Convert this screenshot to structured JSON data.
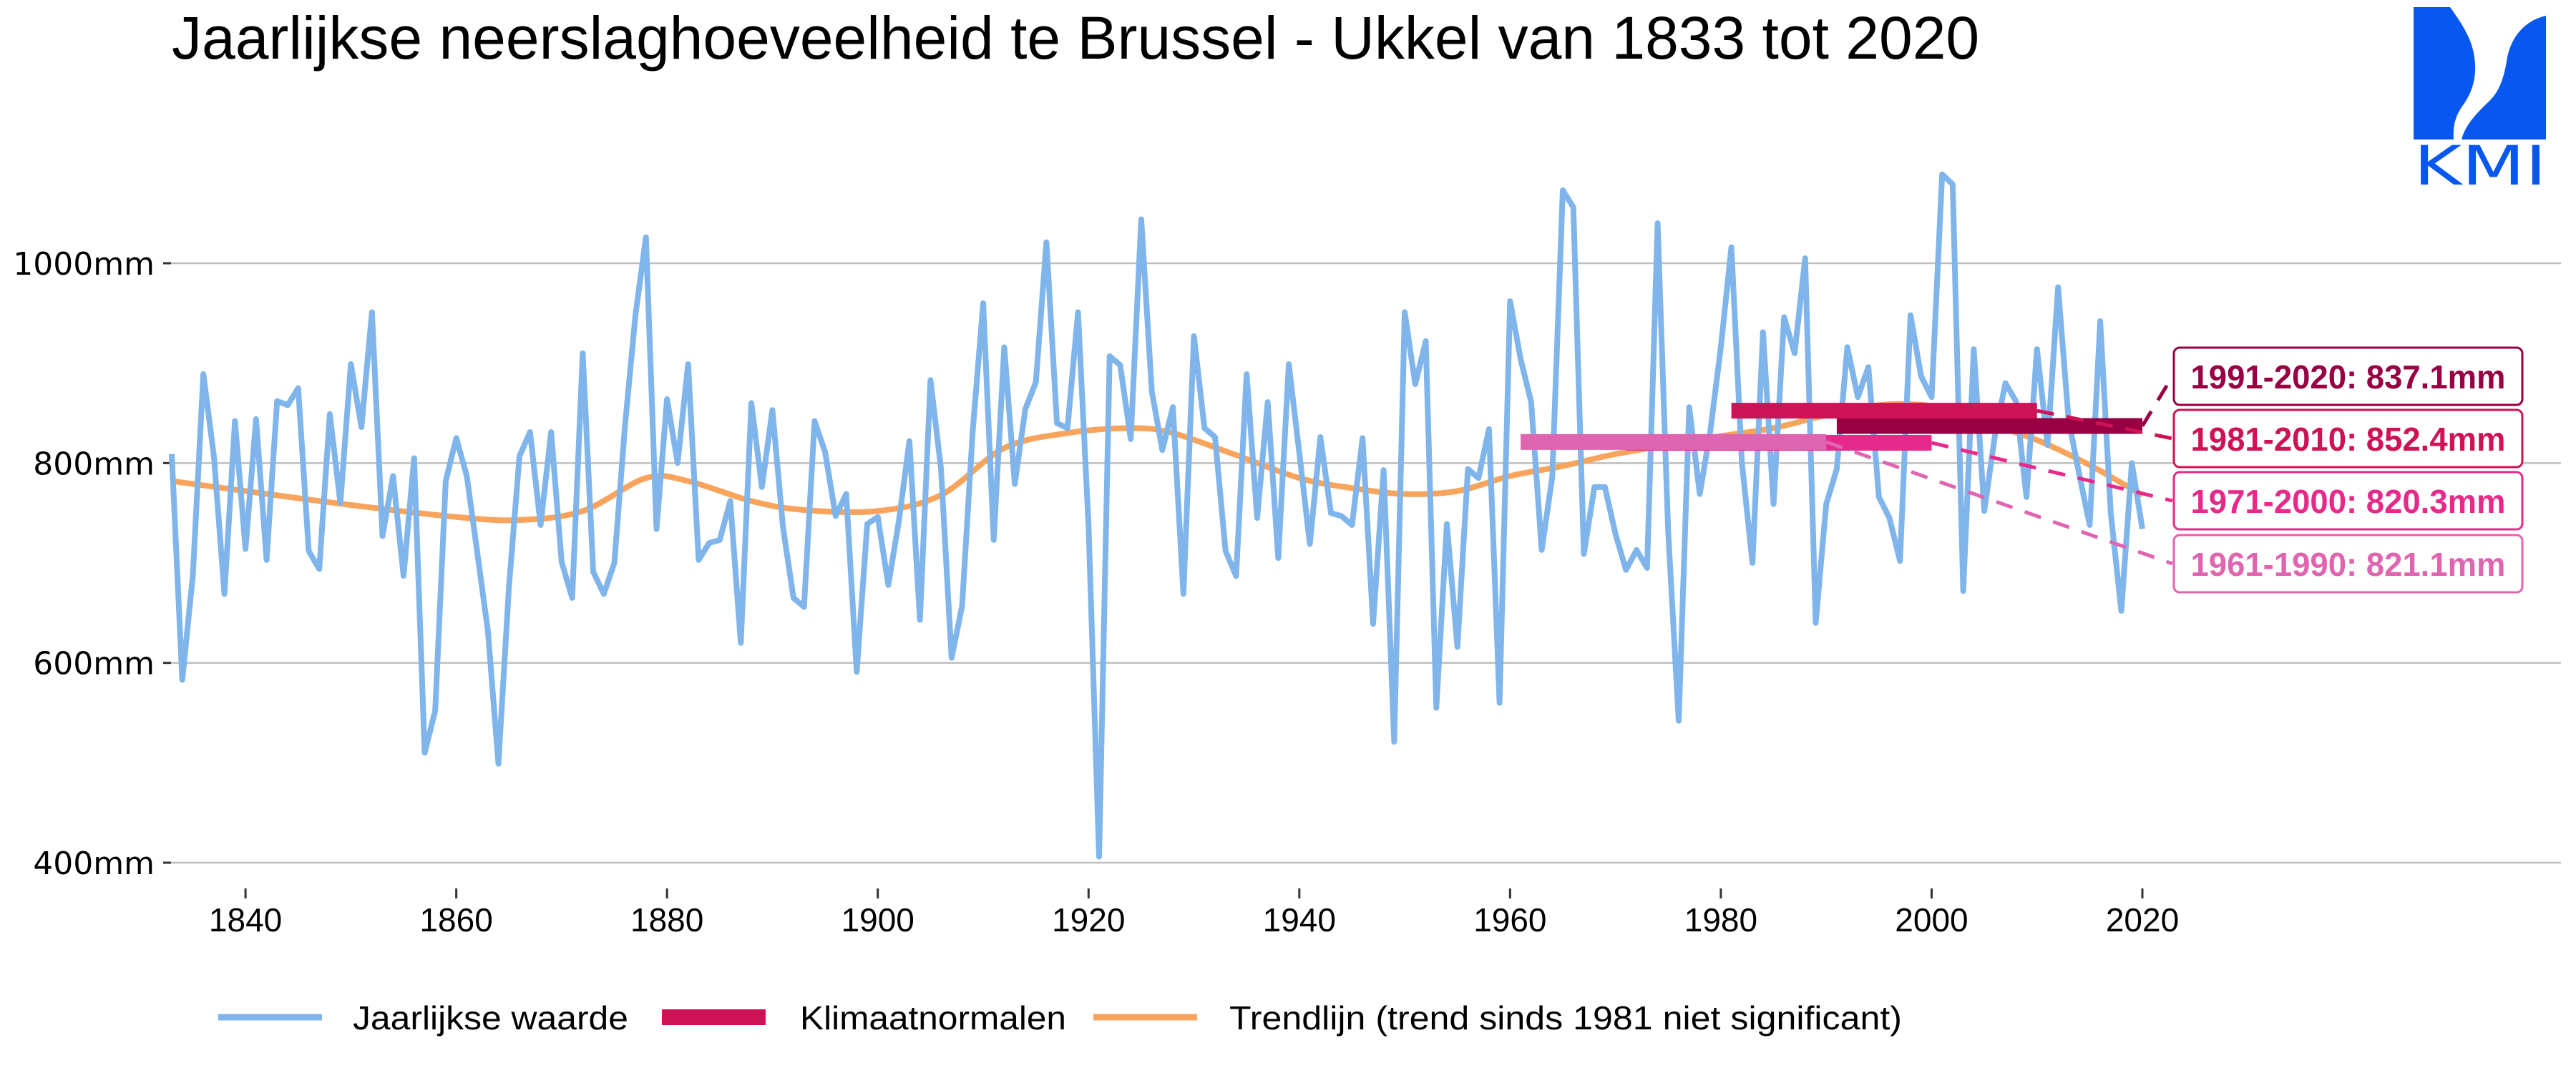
{
  "logo": {
    "text": "KMI",
    "color": "#0757f0"
  },
  "chart_data": {
    "type": "line",
    "title": "Jaarlijkse neerslaghoeveelheid te Brussel - Ukkel van 1833 tot 2020",
    "xlabel": "",
    "ylabel": "",
    "xlim": [
      1833,
      2020
    ],
    "ylim": [
      400,
      1000
    ],
    "grid": true,
    "legend_position": "bottom",
    "x_ticks": [
      1840,
      1860,
      1880,
      1900,
      1920,
      1940,
      1960,
      1980,
      2000,
      2020
    ],
    "x_tick_labels": [
      "1840",
      "1860",
      "1880",
      "1900",
      "1920",
      "1940",
      "1960",
      "1980",
      "2000",
      "2020"
    ],
    "y_ticks": [
      400,
      600,
      800,
      1000
    ],
    "y_tick_labels": [
      "400mm",
      "600mm",
      "800mm",
      "1000mm"
    ],
    "series": [
      {
        "name": "Jaarlijkse waarde",
        "color": "#7fb5ea",
        "x_start": 1833,
        "values": [
          809,
          583,
          687,
          889,
          807,
          669,
          842,
          714,
          844,
          703,
          862,
          858,
          875,
          712,
          694,
          849,
          760,
          899,
          836,
          951,
          727,
          787,
          687,
          805,
          510,
          552,
          782,
          825,
          787,
          710,
          632,
          499,
          676,
          807,
          831,
          738,
          831,
          701,
          665,
          910,
          691,
          669,
          700,
          836,
          948,
          1026,
          734,
          864,
          800,
          899,
          703,
          720,
          723,
          762,
          620,
          860,
          776,
          853,
          736,
          665,
          656,
          842,
          811,
          747,
          769,
          591,
          739,
          746,
          678,
          742,
          822,
          643,
          883,
          794,
          605,
          657,
          831,
          960,
          723,
          916,
          779,
          854,
          881,
          1021,
          840,
          835,
          951,
          737,
          406,
          907,
          898,
          824,
          1044,
          872,
          813,
          856,
          669,
          927,
          835,
          826,
          712,
          687,
          889,
          745,
          861,
          705,
          899,
          810,
          719,
          826,
          750,
          747,
          738,
          825,
          639,
          793,
          521,
          951,
          879,
          922,
          555,
          739,
          616,
          794,
          785,
          834,
          560,
          962,
          904,
          861,
          713,
          786,
          1073,
          1056,
          709,
          776,
          776,
          729,
          693,
          713,
          695,
          1040,
          732,
          542,
          856,
          769,
          832,
          916,
          1016,
          800,
          700,
          931,
          759,
          946,
          910,
          1005,
          640,
          759,
          794,
          916,
          866,
          896,
          766,
          745,
          702,
          948,
          887,
          866,
          1089,
          1079,
          672,
          914,
          752,
          827,
          880,
          862,
          766,
          914,
          818,
          976,
          843,
          789,
          738,
          942,
          750,
          652,
          800,
          734
        ]
      },
      {
        "name": "Trendlijn (trend sinds 1981 niet significant)",
        "color": "#f8a45c",
        "points": [
          [
            1833,
            782
          ],
          [
            1840,
            772
          ],
          [
            1850,
            758
          ],
          [
            1860,
            746
          ],
          [
            1866,
            743
          ],
          [
            1872,
            752
          ],
          [
            1878,
            785
          ],
          [
            1882,
            782
          ],
          [
            1888,
            762
          ],
          [
            1893,
            753
          ],
          [
            1900,
            752
          ],
          [
            1906,
            768
          ],
          [
            1912,
            815
          ],
          [
            1918,
            830
          ],
          [
            1924,
            835
          ],
          [
            1928,
            830
          ],
          [
            1934,
            808
          ],
          [
            1940,
            785
          ],
          [
            1945,
            775
          ],
          [
            1950,
            769
          ],
          [
            1955,
            772
          ],
          [
            1960,
            787
          ],
          [
            1965,
            797
          ],
          [
            1970,
            809
          ],
          [
            1975,
            818
          ],
          [
            1980,
            827
          ],
          [
            1985,
            835
          ],
          [
            1990,
            848
          ],
          [
            1995,
            858
          ],
          [
            2000,
            857
          ],
          [
            2005,
            841
          ],
          [
            2010,
            823
          ],
          [
            2015,
            798
          ],
          [
            2020,
            768
          ]
        ]
      }
    ],
    "climate_normals": [
      {
        "label": "1961-1990: 821.1mm",
        "period": [
          1961,
          1990
        ],
        "value": 821.1,
        "color": "#df65b0"
      },
      {
        "label": "1971-2000: 820.3mm",
        "period": [
          1971,
          2000
        ],
        "value": 820.3,
        "color": "#e7298a"
      },
      {
        "label": "1981-2010: 852.4mm",
        "period": [
          1981,
          2010
        ],
        "value": 852.4,
        "color": "#ce1256"
      },
      {
        "label": "1991-2020: 837.1mm",
        "period": [
          1991,
          2020
        ],
        "value": 837.1,
        "color": "#980043"
      }
    ],
    "legend": [
      {
        "label": "Jaarlijkse waarde",
        "color": "#7fb5ea",
        "kind": "line"
      },
      {
        "label": "Klimaatnormalen",
        "color": "#ce1256",
        "kind": "bar"
      },
      {
        "label": "Trendlijn (trend sinds 1981 niet significant)",
        "color": "#f8a45c",
        "kind": "line"
      }
    ]
  }
}
